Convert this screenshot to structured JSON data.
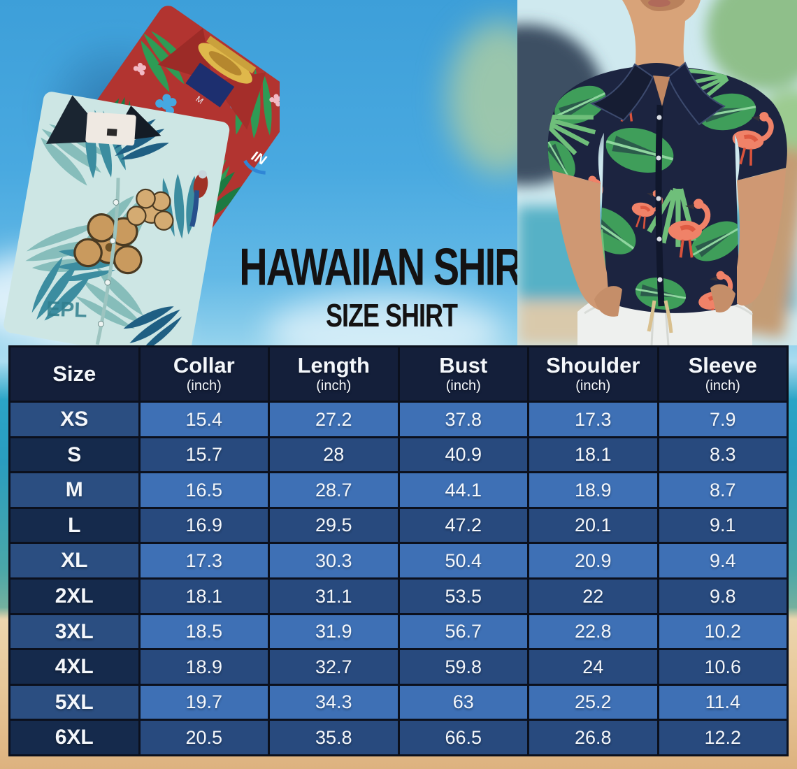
{
  "title": {
    "main": "HAWAIIAN SHIRT",
    "sub": "SIZE SHIRT"
  },
  "photos": {
    "left": "folded red and teal tropical hawaiian shirts",
    "right": "man wearing navy flamingo-print hawaiian shirt and white pants",
    "teal_shirt_print_text": "EPL",
    "red_shirt_tag_text": "M",
    "red_shirt_logo_text": "IN"
  },
  "chart_data": {
    "type": "table",
    "title": "HAWAIIAN SHIRT",
    "subtitle": "SIZE SHIRT",
    "unit": "inch",
    "columns": [
      {
        "label": "Size",
        "unit": ""
      },
      {
        "label": "Collar",
        "unit": "(inch)"
      },
      {
        "label": "Length",
        "unit": "(inch)"
      },
      {
        "label": "Bust",
        "unit": "(inch)"
      },
      {
        "label": "Shoulder",
        "unit": "(inch)"
      },
      {
        "label": "Sleeve",
        "unit": "(inch)"
      }
    ],
    "rows": [
      {
        "size": "XS",
        "values": [
          "15.4",
          "27.2",
          "37.8",
          "17.3",
          "7.9"
        ]
      },
      {
        "size": "S",
        "values": [
          "15.7",
          "28",
          "40.9",
          "18.1",
          "8.3"
        ]
      },
      {
        "size": "M",
        "values": [
          "16.5",
          "28.7",
          "44.1",
          "18.9",
          "8.7"
        ]
      },
      {
        "size": "L",
        "values": [
          "16.9",
          "29.5",
          "47.2",
          "20.1",
          "9.1"
        ]
      },
      {
        "size": "XL",
        "values": [
          "17.3",
          "30.3",
          "50.4",
          "20.9",
          "9.4"
        ]
      },
      {
        "size": "2XL",
        "values": [
          "18.1",
          "31.1",
          "53.5",
          "22",
          "9.8"
        ]
      },
      {
        "size": "3XL",
        "values": [
          "18.5",
          "31.9",
          "56.7",
          "22.8",
          "10.2"
        ]
      },
      {
        "size": "4XL",
        "values": [
          "18.9",
          "32.7",
          "59.8",
          "24",
          "10.6"
        ]
      },
      {
        "size": "5XL",
        "values": [
          "19.7",
          "34.3",
          "63",
          "25.2",
          "11.4"
        ]
      },
      {
        "size": "6XL",
        "values": [
          "20.5",
          "35.8",
          "66.5",
          "26.8",
          "12.2"
        ]
      }
    ]
  },
  "colors": {
    "header_bg": "#141f3a",
    "row_light_size": "#2b4e81",
    "row_light_value": "#3e70b5",
    "row_dark_size": "#152a4c",
    "row_dark_value": "#284a7e",
    "grid": "#0b101d",
    "sky": "#49a9e0",
    "sea": "#2ba4c6",
    "sand": "#ddb27f",
    "title_text": "#141212",
    "red_shirt": "#b23430",
    "teal_shirt": "#cde6e4",
    "navy_shirt": "#1c2440"
  }
}
